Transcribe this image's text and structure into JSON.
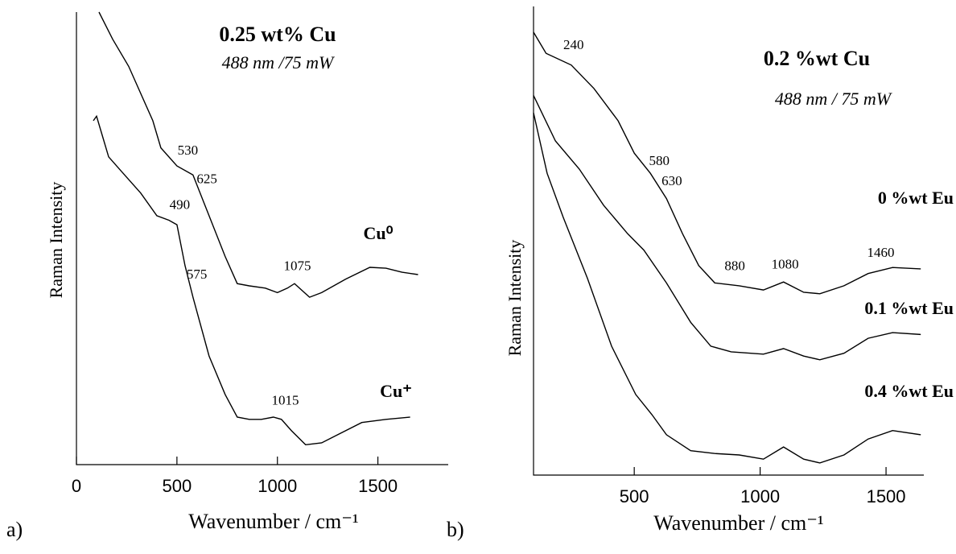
{
  "chart_data": [
    {
      "type": "line",
      "label": "a)",
      "title": "0.25 wt% Cu",
      "subtitle": "488 nm /75 mW",
      "xlabel": "Wavenumber / cm⁻¹",
      "ylabel": "Raman Intensity",
      "xlim": [
        0,
        1850
      ],
      "ylim": [
        0,
        100
      ],
      "xticks": [
        0,
        500,
        1000,
        1500
      ],
      "series": [
        {
          "name": "Cu⁰",
          "color": "#000000",
          "x": [
            112,
            180,
            260,
            380,
            420,
            500,
            580,
            660,
            740,
            800,
            860,
            940,
            1000,
            1050,
            1085,
            1120,
            1160,
            1220,
            1340,
            1460,
            1540,
            1620,
            1700
          ],
          "values": [
            100,
            94,
            88,
            76,
            70,
            66,
            64,
            55,
            46,
            40,
            39.5,
            39,
            38,
            39,
            40,
            38.6,
            37,
            38,
            41,
            43.6,
            43.4,
            42.5,
            42
          ],
          "peaks": [
            530,
            625,
            1075
          ]
        },
        {
          "name": "Cu⁺",
          "color": "#000000",
          "x": [
            84,
            100,
            160,
            220,
            320,
            400,
            460,
            500,
            540,
            580,
            660,
            740,
            800,
            860,
            920,
            980,
            1020,
            1070,
            1140,
            1220,
            1300,
            1420,
            1540,
            1660
          ],
          "values": [
            76,
            77,
            68,
            65,
            60,
            55,
            54,
            53,
            44,
            37,
            24,
            15.5,
            10.5,
            10,
            10,
            10.5,
            10,
            7.5,
            4.4,
            4.8,
            6.6,
            9.3,
            10,
            10.5
          ],
          "peaks": [
            490,
            575,
            1015
          ]
        }
      ]
    },
    {
      "type": "line",
      "label": "b)",
      "title": "0.2 %wt Cu",
      "subtitle": "488 nm / 75 mW",
      "xlabel": "Wavenumber / cm⁻¹",
      "ylabel": "Raman Intensity",
      "xlim": [
        100,
        1650
      ],
      "ylim": [
        0,
        100
      ],
      "xticks": [
        500,
        1000,
        1500
      ],
      "series": [
        {
          "name": "0 %wt Eu",
          "color": "#000000",
          "x": [
            100,
            150,
            250,
            340,
            436,
            500,
            564,
            628,
            692,
            756,
            820,
            917,
            1013,
            1093,
            1173,
            1237,
            1333,
            1429,
            1526,
            1638
          ],
          "values": [
            94.5,
            90,
            87.5,
            82.5,
            75.6,
            68.7,
            64.4,
            59,
            51.5,
            44.7,
            41,
            40.4,
            39.5,
            41.2,
            39,
            38.7,
            40.4,
            43,
            44.3,
            44
          ],
          "peaks": [
            240,
            580,
            630,
            880,
            1080,
            1460
          ]
        },
        {
          "name": "0.1 %wt Eu",
          "color": "#000000",
          "x": [
            100,
            187,
            282,
            378,
            474,
            538,
            628,
            724,
            804,
            885,
            1013,
            1093,
            1173,
            1237,
            1333,
            1429,
            1526,
            1638
          ],
          "values": [
            81,
            71.3,
            65.3,
            57.6,
            51.5,
            48,
            41,
            32.6,
            27.5,
            26.3,
            25.8,
            27,
            25.4,
            24.6,
            26,
            29.2,
            30.4,
            30
          ]
        },
        {
          "name": "0.4 %wt Eu",
          "color": "#000000",
          "x": [
            100,
            154,
            218,
            314,
            410,
            506,
            570,
            628,
            724,
            820,
            917,
            1013,
            1093,
            1173,
            1237,
            1333,
            1429,
            1526,
            1638
          ],
          "values": [
            77.3,
            64.4,
            55,
            42,
            27.5,
            17.2,
            12.9,
            8.6,
            5.2,
            4.6,
            4.3,
            3.4,
            6,
            3.4,
            2.6,
            4.3,
            7.7,
            9.5,
            8.6
          ]
        }
      ]
    }
  ]
}
